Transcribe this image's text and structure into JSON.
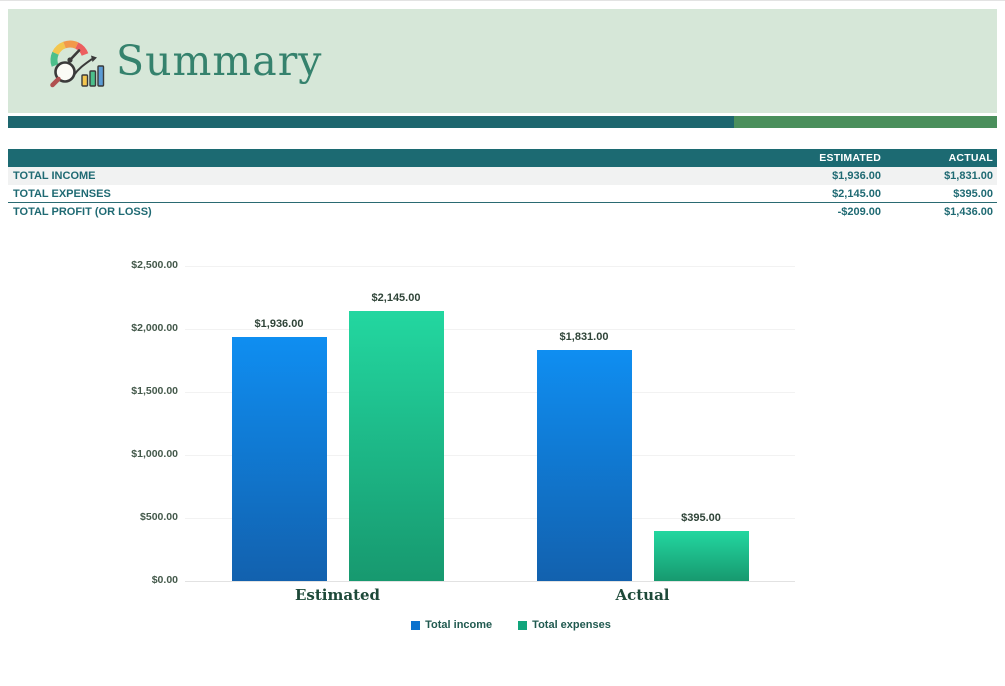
{
  "header": {
    "title": "Summary",
    "icon": "performance-gauge-icon"
  },
  "colors": {
    "hero_bg": "#d6e7d8",
    "title": "#35826d",
    "divider_teal": "#1d666e",
    "divider_green": "#4a8f5c",
    "table_header_bg": "#1c6a72",
    "table_header_text": "#ffffff",
    "table_text": "#1f6a73",
    "row_shaded_bg": "#f1f2f2",
    "rule": "#2a6a72",
    "axis_text": "#44594b",
    "data_label_text": "#2f4438",
    "category_text": "#1d4939",
    "legend_text": "#215a50",
    "gridline": "#f2f2f2",
    "baseline": "#e2e2e2"
  },
  "table": {
    "columns": [
      "ESTIMATED",
      "ACTUAL"
    ],
    "rows": [
      {
        "label": "TOTAL INCOME",
        "estimated": "$1,936.00",
        "actual": "$1,831.00"
      },
      {
        "label": "TOTAL EXPENSES",
        "estimated": "$2,145.00",
        "actual": "$395.00"
      },
      {
        "label": "TOTAL PROFIT (OR LOSS)",
        "estimated": "-$209.00",
        "actual": "$1,436.00"
      }
    ]
  },
  "chart_data": {
    "type": "bar",
    "title": "",
    "xlabel": "",
    "ylabel": "",
    "categories": [
      "Estimated",
      "Actual"
    ],
    "series": [
      {
        "name": "Total income",
        "values": [
          1936,
          1831
        ],
        "labels": [
          "$1,936.00",
          "$1,831.00"
        ],
        "gradient_top": "#0f8ef1",
        "gradient_bottom": "#1261ae",
        "legend_color": "#0b72cd"
      },
      {
        "name": "Total expenses",
        "values": [
          2145,
          395
        ],
        "labels": [
          "$2,145.00",
          "$395.00"
        ],
        "gradient_top": "#23d7a0",
        "gradient_bottom": "#17996f",
        "legend_color": "#11a57c"
      }
    ],
    "ylim": [
      0,
      2500
    ],
    "y_ticks": [
      {
        "value": 0,
        "label": "$0.00"
      },
      {
        "value": 500,
        "label": "$500.00"
      },
      {
        "value": 1000,
        "label": "$1,000.00"
      },
      {
        "value": 1500,
        "label": "$1,500.00"
      },
      {
        "value": 2000,
        "label": "$2,000.00"
      },
      {
        "value": 2500,
        "label": "$2,500.00"
      }
    ],
    "grid": true,
    "legend_position": "bottom"
  }
}
